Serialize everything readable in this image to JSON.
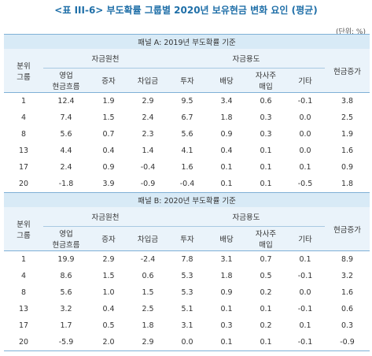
{
  "title": "<표 III-6> 부도확률 그룹별 2020년 보유현금 변화 요인 (평균)",
  "unit": "(단위: %)",
  "header": {
    "group": "분위\n그룹",
    "sources": "자금원천",
    "uses": "자금용도",
    "cols": [
      "영업\n현금흐름",
      "증자",
      "차입금",
      "투자",
      "배당",
      "자사주\n매입",
      "기타"
    ],
    "cash_increase": "현금증가"
  },
  "panels": [
    {
      "title": "패널 A: 2019년 부도확률 기준",
      "rows": [
        [
          "1",
          "12.4",
          "1.9",
          "2.9",
          "9.5",
          "3.4",
          "0.6",
          "-0.1",
          "3.8"
        ],
        [
          "4",
          "7.4",
          "1.5",
          "2.4",
          "6.7",
          "1.8",
          "0.3",
          "0.0",
          "2.5"
        ],
        [
          "8",
          "5.6",
          "0.7",
          "2.3",
          "5.6",
          "0.9",
          "0.3",
          "0.0",
          "1.9"
        ],
        [
          "13",
          "4.4",
          "0.4",
          "1.4",
          "4.1",
          "0.4",
          "0.1",
          "0.0",
          "1.6"
        ],
        [
          "17",
          "2.4",
          "0.9",
          "-0.4",
          "1.6",
          "0.1",
          "0.1",
          "0.1",
          "0.9"
        ],
        [
          "20",
          "-1.8",
          "3.9",
          "-0.9",
          "-0.4",
          "0.1",
          "0.1",
          "-0.5",
          "1.8"
        ]
      ]
    },
    {
      "title": "패널 B: 2020년 부도확률 기준",
      "rows": [
        [
          "1",
          "19.9",
          "2.9",
          "-2.4",
          "7.8",
          "3.1",
          "0.7",
          "0.1",
          "8.9"
        ],
        [
          "4",
          "8.6",
          "1.5",
          "0.6",
          "5.3",
          "1.8",
          "0.5",
          "-0.1",
          "3.2"
        ],
        [
          "8",
          "5.6",
          "1.0",
          "1.5",
          "5.3",
          "0.9",
          "0.2",
          "0.0",
          "1.6"
        ],
        [
          "13",
          "3.2",
          "0.4",
          "2.5",
          "5.1",
          "0.1",
          "0.1",
          "-0.1",
          "0.6"
        ],
        [
          "17",
          "1.7",
          "0.5",
          "1.8",
          "3.1",
          "0.3",
          "0.2",
          "0.1",
          "0.3"
        ],
        [
          "20",
          "-5.9",
          "2.0",
          "2.9",
          "0.0",
          "0.1",
          "0.1",
          "-0.1",
          "-0.9"
        ]
      ]
    }
  ]
}
